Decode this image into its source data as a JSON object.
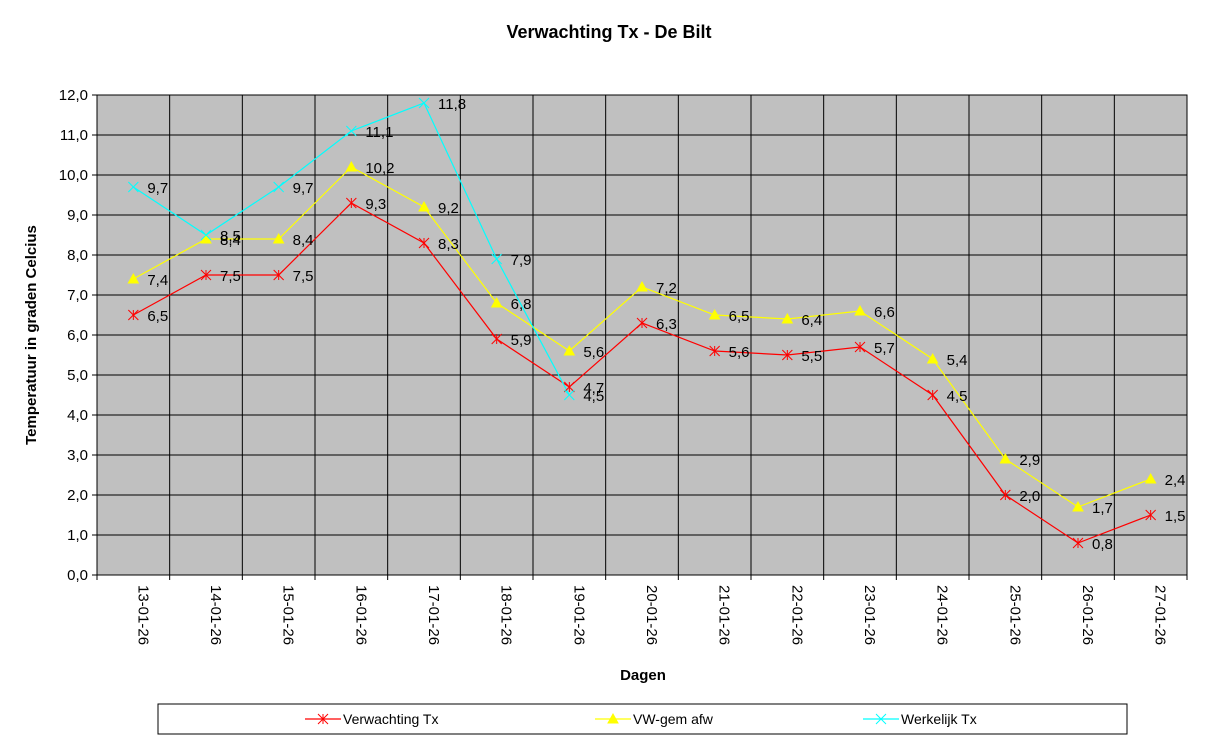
{
  "chart_data": {
    "type": "line",
    "title": "Verwachting Tx - De Bilt",
    "xlabel": "Dagen",
    "ylabel": "Temperatuur in graden Celcius",
    "ylim": [
      0,
      12
    ],
    "y_tick_step": 1,
    "y_tick_labels": [
      "0,0",
      "1,0",
      "2,0",
      "3,0",
      "4,0",
      "5,0",
      "6,0",
      "7,0",
      "8,0",
      "9,0",
      "10,0",
      "11,0",
      "12,0"
    ],
    "grid": true,
    "legend_position": "bottom",
    "plot_background": "#c0c0c0",
    "categories": [
      "13-01-26",
      "14-01-26",
      "15-01-26",
      "16-01-26",
      "17-01-26",
      "18-01-26",
      "19-01-26",
      "20-01-26",
      "21-01-26",
      "22-01-26",
      "23-01-26",
      "24-01-26",
      "25-01-26",
      "26-01-26",
      "27-01-26"
    ],
    "series": [
      {
        "name": "Verwachting Tx",
        "color": "#ff0000",
        "marker": "asterisk",
        "values": [
          6.5,
          7.5,
          7.5,
          9.3,
          8.3,
          5.9,
          4.7,
          6.3,
          5.6,
          5.5,
          5.7,
          4.5,
          2.0,
          0.8,
          1.5
        ],
        "labels": [
          "6,5",
          "7,5",
          "7,5",
          "9,3",
          "8,3",
          "5,9",
          "4,7",
          "6,3",
          "5,6",
          "5,5",
          "5,7",
          "4,5",
          "2,0",
          "0,8",
          "1,5"
        ]
      },
      {
        "name": "VW-gem afw",
        "color": "#ffff00",
        "marker": "triangle",
        "values": [
          7.4,
          8.4,
          8.4,
          10.2,
          9.2,
          6.8,
          5.6,
          7.2,
          6.5,
          6.4,
          6.6,
          5.4,
          2.9,
          1.7,
          2.4
        ],
        "labels": [
          "7,4",
          "8,4",
          "8,4",
          "10,2",
          "9,2",
          "6,8",
          "5,6",
          "7,2",
          "6,5",
          "6,4",
          "6,6",
          "5,4",
          "2,9",
          "1,7",
          "2,4"
        ]
      },
      {
        "name": "Werkelijk Tx",
        "color": "#00ffff",
        "marker": "x",
        "values": [
          9.7,
          8.5,
          9.7,
          11.1,
          11.8,
          7.9,
          4.5,
          null,
          null,
          null,
          null,
          null,
          null,
          null,
          null
        ],
        "labels": [
          "9,7",
          "8,5",
          "9,7",
          "11,1",
          "11,8",
          "7,9",
          "4,5",
          null,
          null,
          null,
          null,
          null,
          null,
          null,
          null
        ]
      }
    ]
  }
}
